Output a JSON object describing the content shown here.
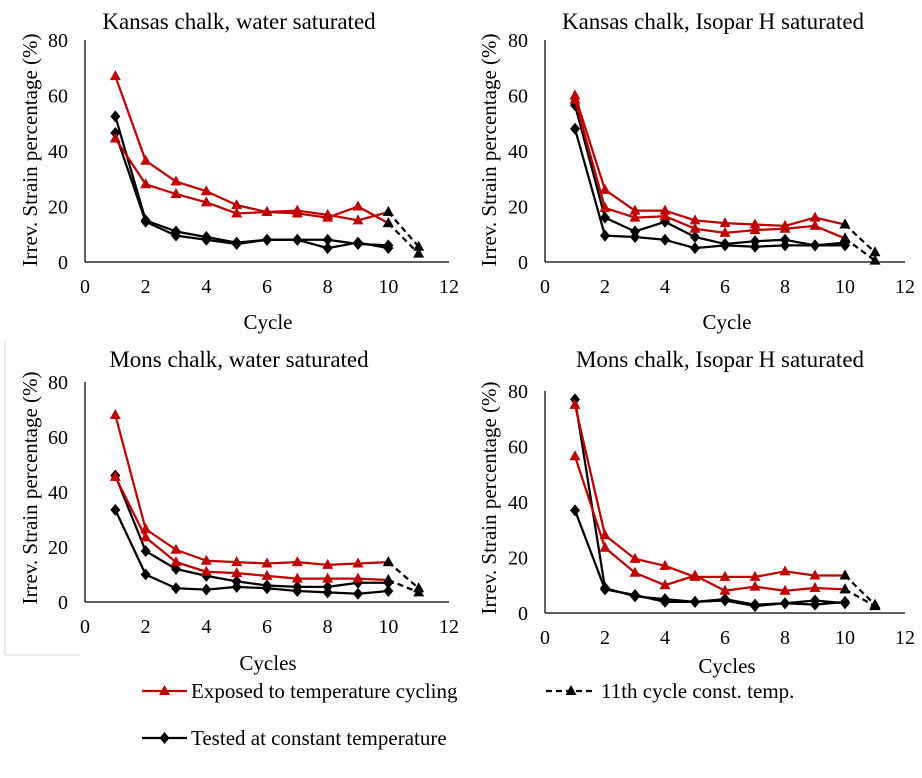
{
  "legend_position": "bottom",
  "legend": [
    {
      "label": "Exposed to temperature cycling",
      "color": "#c00000",
      "marker": "triangle",
      "dashed": false
    },
    {
      "label": "11th cycle const. temp.",
      "color": "#000000",
      "marker": "triangle",
      "dashed": true
    },
    {
      "label": "Tested at constant temperature",
      "color": "#000000",
      "marker": "diamond",
      "dashed": false
    }
  ],
  "chart_data": [
    {
      "type": "line",
      "title": "Kansas chalk, water saturated",
      "xlabel": "Cycle",
      "ylabel": "Irrev. Strain percentage (%)",
      "xlim": [
        0,
        12
      ],
      "ylim": [
        0,
        80
      ],
      "xticks": [
        0,
        2,
        4,
        6,
        8,
        10,
        12
      ],
      "yticks": [
        0,
        20,
        40,
        60,
        80
      ],
      "grid": false,
      "x": [
        1,
        2,
        3,
        4,
        5,
        6,
        7,
        8,
        9,
        10
      ],
      "series": [
        {
          "name": "Tested at constant temperature",
          "color": "#000000",
          "marker": "diamond",
          "dashed": false,
          "values": [
            52.5,
            15,
            11,
            9,
            7,
            8,
            8,
            8,
            6.5,
            6
          ]
        },
        {
          "name": "Tested at constant temperature",
          "color": "#000000",
          "marker": "diamond",
          "dashed": false,
          "values": [
            46.5,
            14.5,
            9.5,
            8,
            6.5,
            8,
            8,
            5,
            7,
            5
          ]
        },
        {
          "name": "Exposed to temperature cycling",
          "color": "#c00000",
          "marker": "triangle",
          "dashed": false,
          "values": [
            67,
            36.5,
            29,
            25.5,
            20.5,
            18,
            18.5,
            17,
            15,
            18
          ]
        },
        {
          "name": "Exposed to temperature cycling",
          "color": "#c00000",
          "marker": "triangle",
          "dashed": false,
          "values": [
            44.5,
            28,
            24.5,
            21.5,
            17.5,
            18,
            17.5,
            16,
            20,
            14
          ]
        },
        {
          "name": "11th cycle const. temp.",
          "color": "#000000",
          "marker": "triangle",
          "dashed": true,
          "x": [
            10,
            11
          ],
          "values": [
            18,
            5.5
          ]
        },
        {
          "name": "11th cycle const. temp.",
          "color": "#000000",
          "marker": "triangle",
          "dashed": true,
          "x": [
            10,
            11
          ],
          "values": [
            14,
            3
          ]
        }
      ]
    },
    {
      "type": "line",
      "title": "Kansas chalk, Isopar H saturated",
      "xlabel": "Cycle",
      "ylabel": "Irrev. Strain percentage (%)",
      "xlim": [
        0,
        12
      ],
      "ylim": [
        0,
        80
      ],
      "xticks": [
        0,
        2,
        4,
        6,
        8,
        10,
        12
      ],
      "yticks": [
        0,
        20,
        40,
        60,
        80
      ],
      "grid": false,
      "x": [
        1,
        2,
        3,
        4,
        5,
        6,
        7,
        8,
        9,
        10
      ],
      "series": [
        {
          "name": "Tested at constant temperature",
          "color": "#000000",
          "marker": "diamond",
          "dashed": false,
          "values": [
            56.5,
            16,
            11,
            14.5,
            9,
            6.5,
            7.5,
            8,
            6,
            7
          ]
        },
        {
          "name": "Tested at constant temperature",
          "color": "#000000",
          "marker": "diamond",
          "dashed": false,
          "values": [
            48,
            9.5,
            9,
            8,
            5,
            6,
            5.5,
            6,
            6,
            6
          ]
        },
        {
          "name": "Exposed to temperature cycling",
          "color": "#c00000",
          "marker": "triangle",
          "dashed": false,
          "values": [
            60,
            26,
            18.5,
            18.5,
            15,
            14,
            13.5,
            13,
            16,
            13.5
          ]
        },
        {
          "name": "Exposed to temperature cycling",
          "color": "#c00000",
          "marker": "triangle",
          "dashed": false,
          "values": [
            58.5,
            19.5,
            16,
            16.5,
            12,
            10.5,
            11.5,
            12,
            13,
            8.5
          ]
        },
        {
          "name": "11th cycle const. temp.",
          "color": "#000000",
          "marker": "triangle",
          "dashed": true,
          "x": [
            10,
            11
          ],
          "values": [
            13.5,
            3.5
          ]
        },
        {
          "name": "11th cycle const. temp.",
          "color": "#000000",
          "marker": "triangle",
          "dashed": true,
          "x": [
            10,
            11
          ],
          "values": [
            8.5,
            0.5
          ]
        }
      ]
    },
    {
      "type": "line",
      "title": "Mons chalk, water saturated",
      "xlabel": "Cycles",
      "ylabel": "Irrev. Strain percentage (%)",
      "xlim": [
        0,
        12
      ],
      "ylim": [
        0,
        80
      ],
      "xticks": [
        0,
        2,
        4,
        6,
        8,
        10,
        12
      ],
      "yticks": [
        0,
        20,
        40,
        60,
        80
      ],
      "grid": false,
      "x": [
        1,
        2,
        3,
        4,
        5,
        6,
        7,
        8,
        9,
        10
      ],
      "series": [
        {
          "name": "Tested at constant temperature",
          "color": "#000000",
          "marker": "diamond",
          "dashed": false,
          "values": [
            46,
            18.5,
            12,
            9.5,
            7.5,
            6,
            5.5,
            5.5,
            7,
            7
          ]
        },
        {
          "name": "Tested at constant temperature",
          "color": "#000000",
          "marker": "diamond",
          "dashed": false,
          "values": [
            33.5,
            10,
            5,
            4.5,
            5.5,
            5,
            4,
            3.5,
            3,
            4
          ]
        },
        {
          "name": "Exposed to temperature cycling",
          "color": "#c00000",
          "marker": "triangle",
          "dashed": false,
          "values": [
            68,
            26.5,
            19,
            15,
            14.5,
            14,
            14.5,
            13.5,
            14,
            14.5
          ]
        },
        {
          "name": "Exposed to temperature cycling",
          "color": "#c00000",
          "marker": "triangle",
          "dashed": false,
          "values": [
            45.5,
            23.5,
            14.5,
            11,
            10.5,
            9.5,
            8.5,
            8.5,
            8.5,
            8
          ]
        },
        {
          "name": "11th cycle const. temp.",
          "color": "#000000",
          "marker": "triangle",
          "dashed": true,
          "x": [
            10,
            11
          ],
          "values": [
            14.5,
            5
          ]
        },
        {
          "name": "11th cycle const. temp.",
          "color": "#000000",
          "marker": "triangle",
          "dashed": true,
          "x": [
            10,
            11
          ],
          "values": [
            8,
            3.5
          ]
        }
      ]
    },
    {
      "type": "line",
      "title": "Mons chalk, Isopar H saturated",
      "xlabel": "Cycles",
      "ylabel": "Irrev. Strain percentage (%)",
      "xlim": [
        0,
        12
      ],
      "ylim": [
        0,
        80
      ],
      "xticks": [
        0,
        2,
        4,
        6,
        8,
        10,
        12
      ],
      "yticks": [
        0,
        20,
        40,
        60,
        80
      ],
      "grid": false,
      "x": [
        1,
        2,
        3,
        4,
        5,
        6,
        7,
        8,
        9,
        10
      ],
      "series": [
        {
          "name": "Tested at constant temperature",
          "color": "#000000",
          "marker": "diamond",
          "dashed": false,
          "values": [
            77,
            9,
            6,
            5,
            4,
            5,
            3,
            3.5,
            4.5,
            3.5
          ]
        },
        {
          "name": "Tested at constant temperature",
          "color": "#000000",
          "marker": "diamond",
          "dashed": false,
          "values": [
            37,
            8.5,
            6.5,
            4,
            4,
            4.5,
            2.5,
            3.5,
            3,
            4
          ]
        },
        {
          "name": "Exposed to temperature cycling",
          "color": "#c00000",
          "marker": "triangle",
          "dashed": false,
          "values": [
            75,
            28,
            19.5,
            17,
            13,
            13,
            13,
            15,
            13.5,
            13.5
          ]
        },
        {
          "name": "Exposed to temperature cycling",
          "color": "#c00000",
          "marker": "triangle",
          "dashed": false,
          "values": [
            56.5,
            23.5,
            14.5,
            10,
            13.5,
            8,
            9.5,
            8,
            9,
            8.5
          ]
        },
        {
          "name": "11th cycle const. temp.",
          "color": "#000000",
          "marker": "triangle",
          "dashed": true,
          "x": [
            10,
            11
          ],
          "values": [
            13.5,
            3
          ]
        },
        {
          "name": "11th cycle const. temp.",
          "color": "#000000",
          "marker": "triangle",
          "dashed": true,
          "x": [
            10,
            11
          ],
          "values": [
            8.5,
            2.5
          ]
        }
      ]
    }
  ]
}
